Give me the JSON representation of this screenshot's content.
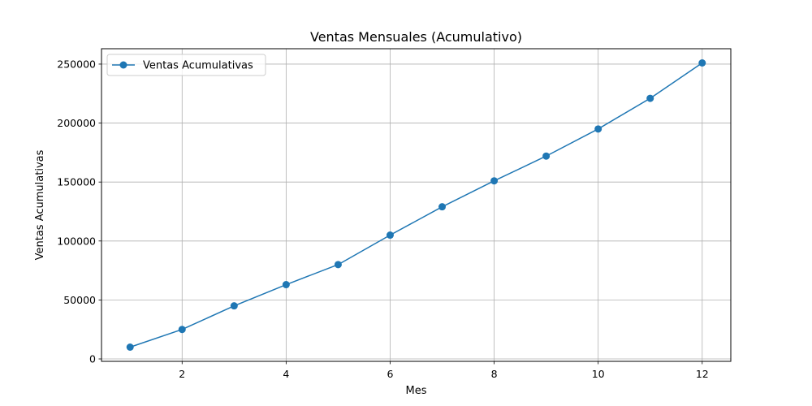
{
  "chart_data": {
    "type": "line",
    "title": "Ventas Mensuales (Acumulativo)",
    "xlabel": "Mes",
    "ylabel": "Ventas Acumulativas",
    "x": [
      1,
      2,
      3,
      4,
      5,
      6,
      7,
      8,
      9,
      10,
      11,
      12
    ],
    "series": [
      {
        "name": "Ventas Acumulativas",
        "values": [
          10000,
          25000,
          45000,
          63000,
          80000,
          105000,
          129000,
          151000,
          172000,
          195000,
          221000,
          251000
        ],
        "color": "#1f77b4",
        "marker": "circle"
      }
    ],
    "xlim": [
      0.45,
      12.55
    ],
    "ylim": [
      -2050,
      263050
    ],
    "xticks": [
      2,
      4,
      6,
      8,
      10,
      12
    ],
    "yticks": [
      0,
      50000,
      100000,
      150000,
      200000,
      250000
    ],
    "xtick_labels": [
      "2",
      "4",
      "6",
      "8",
      "10",
      "12"
    ],
    "ytick_labels": [
      "0",
      "50000",
      "100000",
      "150000",
      "200000",
      "250000"
    ],
    "grid": true,
    "legend_position": "upper-left"
  }
}
